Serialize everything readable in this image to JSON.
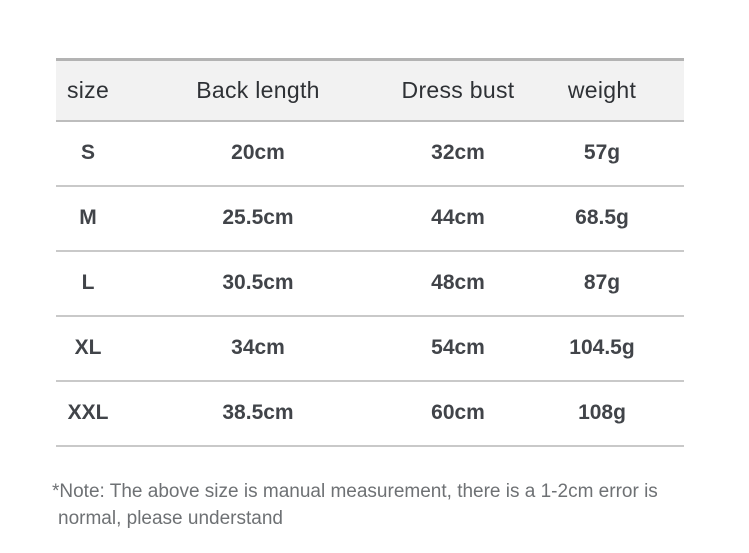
{
  "chart_data": {
    "type": "table",
    "columns": [
      "size",
      "Back length",
      "Dress bust",
      "weight"
    ],
    "rows": [
      [
        "S",
        "20cm",
        "32cm",
        "57g"
      ],
      [
        "M",
        "25.5cm",
        "44cm",
        "68.5g"
      ],
      [
        "L",
        "30.5cm",
        "48cm",
        "87g"
      ],
      [
        "XL",
        "34cm",
        "54cm",
        "104.5g"
      ],
      [
        "XXL",
        "38.5cm",
        "60cm",
        "108g"
      ]
    ]
  },
  "note": {
    "lines": [
      "*Note: The above size is manual measurement, there is a 1-2cm error is",
      "normal, please understand"
    ]
  },
  "colors": {
    "header_bg": "#f2f2f2",
    "table_top_border": "#b3b3b3",
    "header_bottom_border": "#bdbdbd",
    "row_divider": "#c9c9c9",
    "header_text": "#2e3135",
    "body_text": "#414449",
    "note_text": "#6e7174"
  }
}
